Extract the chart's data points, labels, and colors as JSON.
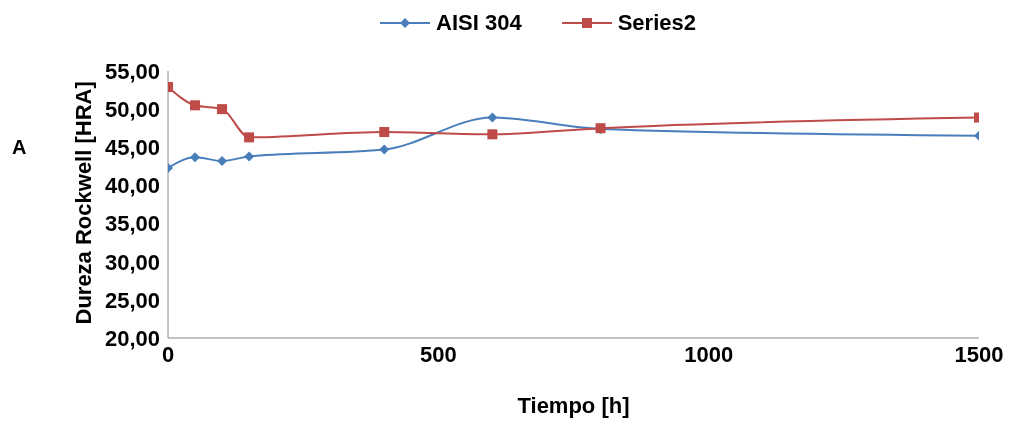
{
  "chart_data": {
    "type": "line",
    "xlabel": "Tiempo [h]",
    "ylabel": "Dureza Rockwell [HRA]",
    "annotations": [
      "A"
    ],
    "x": [
      0,
      50,
      100,
      150,
      400,
      600,
      800,
      1500
    ],
    "series": [
      {
        "name": "AISI 304",
        "color": "#4a7ebb",
        "marker": "diamond",
        "values": [
          42.3,
          43.7,
          43.2,
          43.8,
          44.7,
          48.9,
          47.4,
          46.5
        ]
      },
      {
        "name": "Series2",
        "color": "#be4b48",
        "marker": "square",
        "values": [
          52.9,
          50.5,
          50.0,
          46.3,
          47.0,
          46.7,
          47.5,
          48.9
        ]
      }
    ],
    "xlim": [
      0,
      1500
    ],
    "xticks": [
      0,
      500,
      1000,
      1500
    ],
    "ylim": [
      20,
      55
    ],
    "yticks": [
      {
        "value": 20,
        "label": "20,00"
      },
      {
        "value": 25,
        "label": "25,00"
      },
      {
        "value": 30,
        "label": "30,00"
      },
      {
        "value": 35,
        "label": "35,00"
      },
      {
        "value": 40,
        "label": "40,00"
      },
      {
        "value": 45,
        "label": "45,00"
      },
      {
        "value": 50,
        "label": "50,00"
      },
      {
        "value": 55,
        "label": "55,00"
      }
    ],
    "grid": false,
    "legend": "top"
  }
}
